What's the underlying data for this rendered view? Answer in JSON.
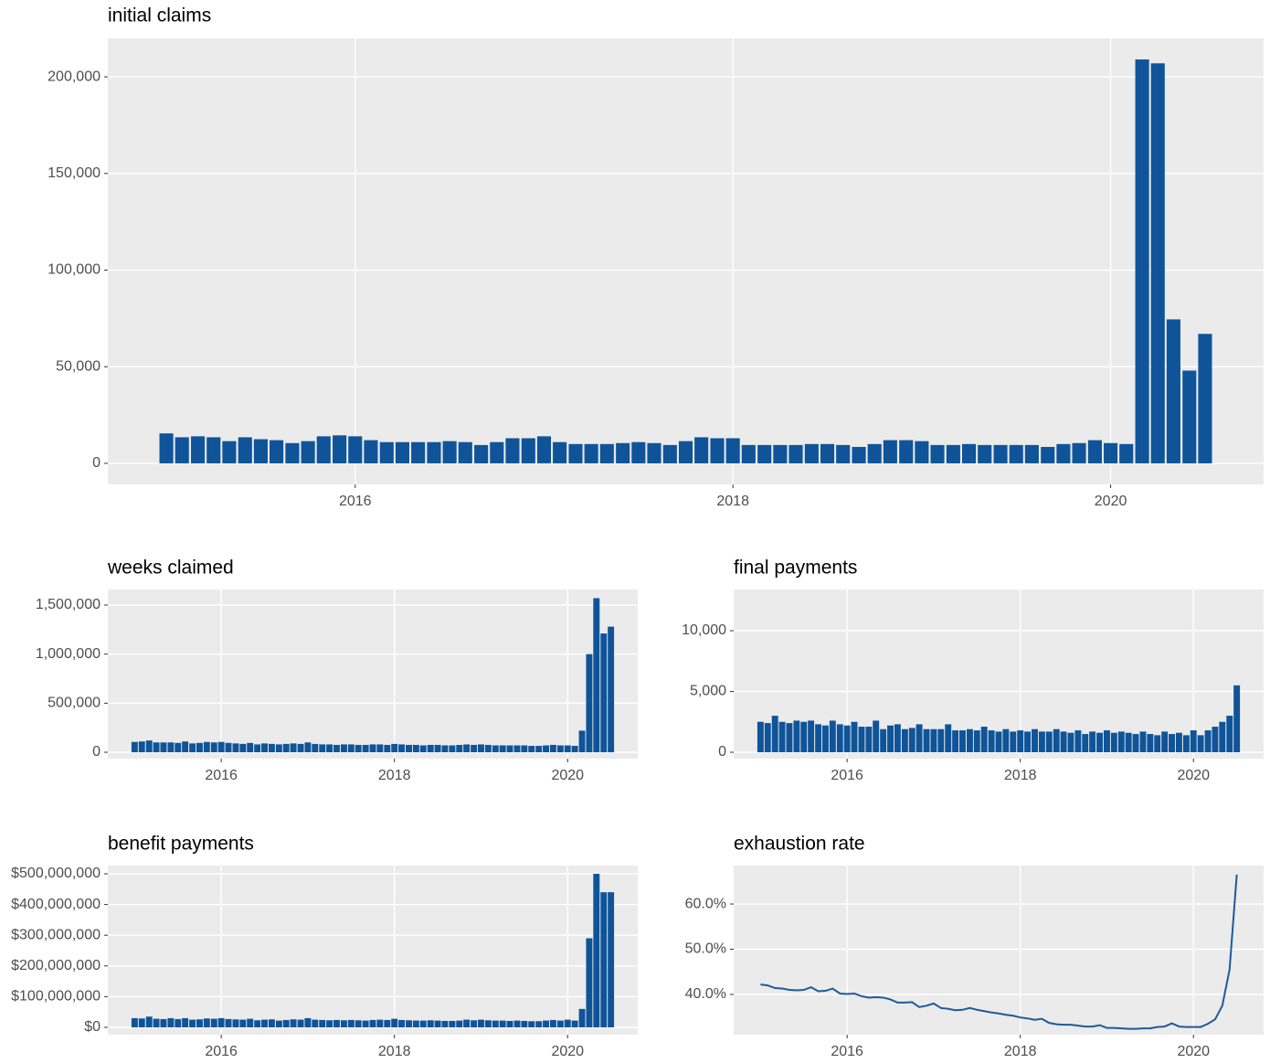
{
  "chart_data": [
    {
      "type": "bar",
      "title": "initial claims",
      "color": "#0f5499",
      "grid": true,
      "x": [
        2015,
        2015.083,
        2015.167,
        2015.25,
        2015.333,
        2015.417,
        2015.5,
        2015.583,
        2015.667,
        2015.75,
        2015.833,
        2015.917,
        2016,
        2016.083,
        2016.167,
        2016.25,
        2016.333,
        2016.417,
        2016.5,
        2016.583,
        2016.667,
        2016.75,
        2016.833,
        2016.917,
        2017,
        2017.083,
        2017.167,
        2017.25,
        2017.333,
        2017.417,
        2017.5,
        2017.583,
        2017.667,
        2017.75,
        2017.833,
        2017.917,
        2018,
        2018.083,
        2018.167,
        2018.25,
        2018.333,
        2018.417,
        2018.5,
        2018.583,
        2018.667,
        2018.75,
        2018.833,
        2018.917,
        2019,
        2019.083,
        2019.167,
        2019.25,
        2019.333,
        2019.417,
        2019.5,
        2019.583,
        2019.667,
        2019.75,
        2019.833,
        2019.917,
        2020,
        2020.083,
        2020.167,
        2020.25,
        2020.333,
        2020.417,
        2020.5
      ],
      "values": [
        15500,
        13500,
        14000,
        13500,
        11500,
        13500,
        12500,
        12000,
        10500,
        11500,
        14000,
        14500,
        14000,
        12000,
        11000,
        11000,
        11000,
        11000,
        11500,
        11000,
        9500,
        11000,
        13000,
        13000,
        14000,
        11000,
        10000,
        10000,
        10000,
        10500,
        11000,
        10500,
        9500,
        11500,
        13500,
        13000,
        13000,
        9500,
        9500,
        9500,
        9500,
        10000,
        10000,
        9500,
        8500,
        10000,
        12000,
        12000,
        11500,
        9500,
        9500,
        10000,
        9500,
        9500,
        9500,
        9500,
        8500,
        10000,
        10500,
        12000,
        10500,
        10000,
        209000,
        207000,
        74500,
        48000,
        67000
      ],
      "xlim": [
        2014.69,
        2020.81
      ],
      "xticks": [
        2016,
        2018,
        2020
      ],
      "ylim": [
        -10900,
        219900
      ],
      "yticks": [
        0,
        {
          "value": 50000,
          "label": "50,000"
        },
        {
          "value": 100000,
          "label": "100,000"
        },
        {
          "value": 150000,
          "label": "150,000"
        },
        {
          "value": 200000,
          "label": "200,000"
        }
      ]
    },
    {
      "type": "bar",
      "title": "weeks claimed",
      "color": "#0f5499",
      "grid": true,
      "x": [
        2015,
        2015.083,
        2015.167,
        2015.25,
        2015.333,
        2015.417,
        2015.5,
        2015.583,
        2015.667,
        2015.75,
        2015.833,
        2015.917,
        2016,
        2016.083,
        2016.167,
        2016.25,
        2016.333,
        2016.417,
        2016.5,
        2016.583,
        2016.667,
        2016.75,
        2016.833,
        2016.917,
        2017,
        2017.083,
        2017.167,
        2017.25,
        2017.333,
        2017.417,
        2017.5,
        2017.583,
        2017.667,
        2017.75,
        2017.833,
        2017.917,
        2018,
        2018.083,
        2018.167,
        2018.25,
        2018.333,
        2018.417,
        2018.5,
        2018.583,
        2018.667,
        2018.75,
        2018.833,
        2018.917,
        2019,
        2019.083,
        2019.167,
        2019.25,
        2019.333,
        2019.417,
        2019.5,
        2019.583,
        2019.667,
        2019.75,
        2019.833,
        2019.917,
        2020,
        2020.083,
        2020.167,
        2020.25,
        2020.333,
        2020.417,
        2020.5
      ],
      "values": [
        105000,
        110000,
        120000,
        100000,
        100000,
        100000,
        95000,
        110000,
        90000,
        95000,
        105000,
        100000,
        105000,
        95000,
        90000,
        85000,
        95000,
        80000,
        90000,
        85000,
        80000,
        85000,
        90000,
        85000,
        100000,
        85000,
        80000,
        80000,
        75000,
        80000,
        80000,
        75000,
        75000,
        80000,
        80000,
        75000,
        85000,
        80000,
        75000,
        75000,
        70000,
        75000,
        75000,
        70000,
        70000,
        75000,
        80000,
        75000,
        80000,
        75000,
        70000,
        70000,
        70000,
        70000,
        70000,
        65000,
        65000,
        70000,
        75000,
        70000,
        70000,
        65000,
        220000,
        1000000,
        1570000,
        1210000,
        1280000
      ],
      "xlim": [
        2014.69,
        2020.81
      ],
      "xticks": [
        2016,
        2018,
        2020
      ],
      "ylim": [
        -65000,
        1658000
      ],
      "yticks": [
        0,
        {
          "value": 500000,
          "label": "500,000"
        },
        {
          "value": 1000000,
          "label": "1,000,000"
        },
        {
          "value": 1500000,
          "label": "1,500,000"
        }
      ]
    },
    {
      "type": "bar",
      "title": "final payments",
      "color": "#0f5499",
      "grid": true,
      "x": [
        2015,
        2015.083,
        2015.167,
        2015.25,
        2015.333,
        2015.417,
        2015.5,
        2015.583,
        2015.667,
        2015.75,
        2015.833,
        2015.917,
        2016,
        2016.083,
        2016.167,
        2016.25,
        2016.333,
        2016.417,
        2016.5,
        2016.583,
        2016.667,
        2016.75,
        2016.833,
        2016.917,
        2017,
        2017.083,
        2017.167,
        2017.25,
        2017.333,
        2017.417,
        2017.5,
        2017.583,
        2017.667,
        2017.75,
        2017.833,
        2017.917,
        2018,
        2018.083,
        2018.167,
        2018.25,
        2018.333,
        2018.417,
        2018.5,
        2018.583,
        2018.667,
        2018.75,
        2018.833,
        2018.917,
        2019,
        2019.083,
        2019.167,
        2019.25,
        2019.333,
        2019.417,
        2019.5,
        2019.583,
        2019.667,
        2019.75,
        2019.833,
        2019.917,
        2020,
        2020.083,
        2020.167,
        2020.25,
        2020.333,
        2020.417,
        2020.5
      ],
      "values": [
        2500,
        2400,
        3000,
        2500,
        2400,
        2600,
        2500,
        2600,
        2300,
        2200,
        2600,
        2300,
        2200,
        2500,
        2100,
        2100,
        2600,
        1900,
        2200,
        2300,
        1900,
        2000,
        2300,
        1900,
        1900,
        1900,
        2300,
        1800,
        1800,
        1900,
        1800,
        2100,
        1800,
        1700,
        1900,
        1700,
        1800,
        1700,
        1900,
        1700,
        1700,
        1900,
        1700,
        1600,
        1800,
        1500,
        1700,
        1600,
        1800,
        1600,
        1700,
        1600,
        1500,
        1700,
        1500,
        1400,
        1700,
        1500,
        1600,
        1400,
        1800,
        1400,
        1800,
        2100,
        2500,
        3000,
        5500
      ],
      "xlim": [
        2014.69,
        2020.81
      ],
      "xticks": [
        2016,
        2018,
        2020
      ],
      "ylim": [
        -526,
        13383
      ],
      "yticks": [
        0,
        {
          "value": 5000,
          "label": "5,000"
        },
        {
          "value": 10000,
          "label": "10,000"
        }
      ]
    },
    {
      "type": "bar",
      "title": "benefit payments",
      "color": "#0f5499",
      "grid": true,
      "x": [
        2015,
        2015.083,
        2015.167,
        2015.25,
        2015.333,
        2015.417,
        2015.5,
        2015.583,
        2015.667,
        2015.75,
        2015.833,
        2015.917,
        2016,
        2016.083,
        2016.167,
        2016.25,
        2016.333,
        2016.417,
        2016.5,
        2016.583,
        2016.667,
        2016.75,
        2016.833,
        2016.917,
        2017,
        2017.083,
        2017.167,
        2017.25,
        2017.333,
        2017.417,
        2017.5,
        2017.583,
        2017.667,
        2017.75,
        2017.833,
        2017.917,
        2018,
        2018.083,
        2018.167,
        2018.25,
        2018.333,
        2018.417,
        2018.5,
        2018.583,
        2018.667,
        2018.75,
        2018.833,
        2018.917,
        2019,
        2019.083,
        2019.167,
        2019.25,
        2019.333,
        2019.417,
        2019.5,
        2019.583,
        2019.667,
        2019.75,
        2019.833,
        2019.917,
        2020,
        2020.083,
        2020.167,
        2020.25,
        2020.333,
        2020.417,
        2020.5
      ],
      "values": [
        30000000,
        29000000,
        35000000,
        28000000,
        27000000,
        30000000,
        27000000,
        30000000,
        25000000,
        26000000,
        29000000,
        28000000,
        30000000,
        27000000,
        26000000,
        25000000,
        28000000,
        23000000,
        25000000,
        26000000,
        22000000,
        24000000,
        26000000,
        25000000,
        30000000,
        25000000,
        24000000,
        23000000,
        24000000,
        23000000,
        24000000,
        23000000,
        22000000,
        24000000,
        25000000,
        24000000,
        28000000,
        24000000,
        23000000,
        22000000,
        22000000,
        23000000,
        22000000,
        21000000,
        21000000,
        22000000,
        25000000,
        23000000,
        25000000,
        23000000,
        22000000,
        22000000,
        21000000,
        22000000,
        21000000,
        20000000,
        20000000,
        22000000,
        24000000,
        22000000,
        25000000,
        22000000,
        60000000,
        290000000,
        500000000,
        440000000,
        440000000
      ],
      "xlim": [
        2014.69,
        2020.81
      ],
      "xticks": [
        2016,
        2018,
        2020
      ],
      "ylim": [
        -23800000,
        526800000
      ],
      "yticks": [
        {
          "value": 0,
          "label": "$0"
        },
        {
          "value": 100000000,
          "label": "$100,000,000"
        },
        {
          "value": 200000000,
          "label": "$200,000,000"
        },
        {
          "value": 300000000,
          "label": "$300,000,000"
        },
        {
          "value": 400000000,
          "label": "$400,000,000"
        },
        {
          "value": 500000000,
          "label": "$500,000,000"
        }
      ]
    },
    {
      "type": "line",
      "title": "exhaustion rate",
      "color": "#1f5a9a",
      "grid": true,
      "x": [
        2015,
        2015.083,
        2015.167,
        2015.25,
        2015.333,
        2015.417,
        2015.5,
        2015.583,
        2015.667,
        2015.75,
        2015.833,
        2015.917,
        2016,
        2016.083,
        2016.167,
        2016.25,
        2016.333,
        2016.417,
        2016.5,
        2016.583,
        2016.667,
        2016.75,
        2016.833,
        2016.917,
        2017,
        2017.083,
        2017.167,
        2017.25,
        2017.333,
        2017.417,
        2017.5,
        2017.583,
        2017.667,
        2017.75,
        2017.833,
        2017.917,
        2018,
        2018.083,
        2018.167,
        2018.25,
        2018.333,
        2018.417,
        2018.5,
        2018.583,
        2018.667,
        2018.75,
        2018.833,
        2018.917,
        2019,
        2019.083,
        2019.167,
        2019.25,
        2019.333,
        2019.417,
        2019.5,
        2019.583,
        2019.667,
        2019.75,
        2019.833,
        2019.917,
        2020,
        2020.083,
        2020.167,
        2020.25,
        2020.333,
        2020.417,
        2020.5
      ],
      "values": [
        42.2,
        42,
        41.4,
        41.3,
        41,
        40.9,
        41,
        41.6,
        40.7,
        40.8,
        41.3,
        40.2,
        40.1,
        40.2,
        39.6,
        39.3,
        39.4,
        39.3,
        38.9,
        38.2,
        38.2,
        38.3,
        37.2,
        37.5,
        38,
        37,
        36.8,
        36.5,
        36.6,
        37,
        36.6,
        36.3,
        36,
        35.8,
        35.5,
        35.3,
        34.9,
        34.7,
        34.4,
        34.6,
        33.7,
        33.4,
        33.3,
        33.3,
        33.1,
        32.9,
        32.9,
        33.2,
        32.6,
        32.6,
        32.5,
        32.4,
        32.4,
        32.5,
        32.5,
        32.8,
        32.9,
        33.6,
        32.9,
        32.8,
        32.8,
        32.8,
        33.5,
        34.5,
        37.5,
        45.5,
        66.5
      ],
      "xlim": [
        2014.69,
        2020.81
      ],
      "xticks": [
        2016,
        2018,
        2020
      ],
      "ylim": [
        31.1,
        68.5
      ],
      "yticks": [
        {
          "value": 40,
          "label": "40.0%"
        },
        {
          "value": 50,
          "label": "50.0%"
        },
        {
          "value": 60,
          "label": "60.0%"
        }
      ]
    }
  ]
}
